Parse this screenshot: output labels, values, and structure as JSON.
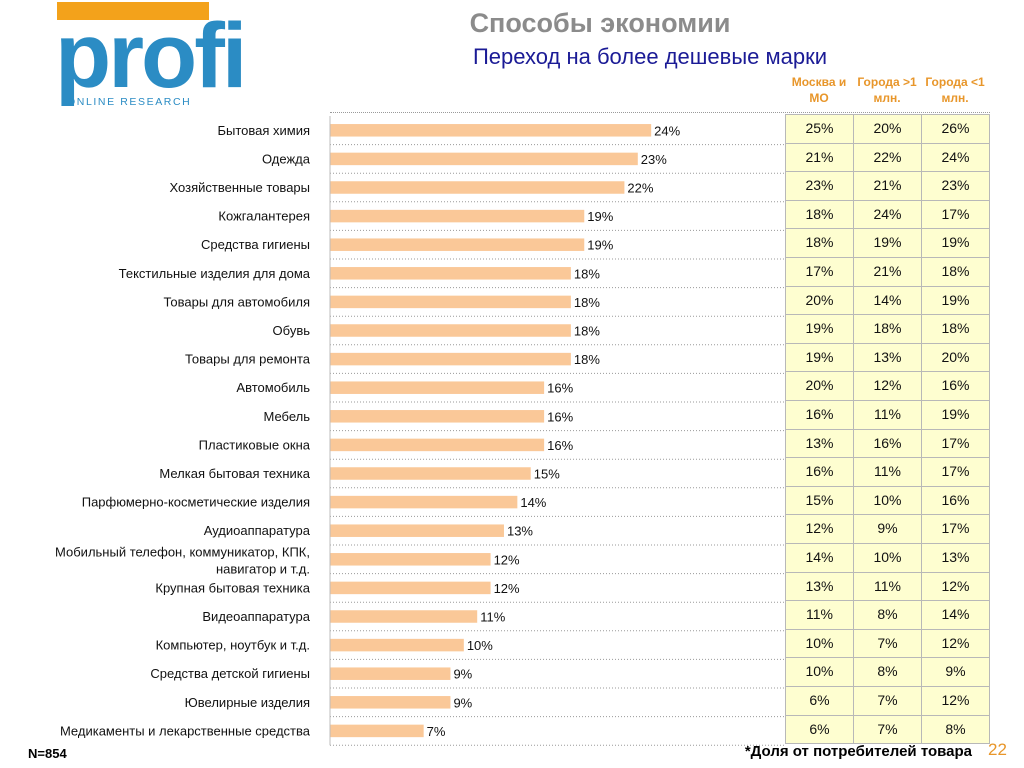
{
  "logo": {
    "word": "profi",
    "subtitle": "ONLINE RESEARCH",
    "blue": "#2b8cc4",
    "orange": "#f3a21b"
  },
  "titles": {
    "main": "Способы экономии",
    "sub": "Переход на более дешевые марки"
  },
  "table_headers": [
    "Москва и МО",
    "Города >1 млн.",
    "Города <1 млн."
  ],
  "colors": {
    "bar": "#fac898",
    "table_bg": "#fefed0",
    "title_gray": "#8b8b8b",
    "subtitle_blue": "#1b1b96",
    "accent_orange": "#e8962a"
  },
  "chart_data": {
    "type": "bar",
    "orientation": "horizontal",
    "categories": [
      "Бытовая химия",
      "Одежда",
      "Хозяйственные товары",
      "Кожгалантерея",
      "Средства гигиены",
      "Текстильные изделия для дома",
      "Товары для автомобиля",
      "Обувь",
      "Товары для ремонта",
      "Автомобиль",
      "Мебель",
      "Пластиковые окна",
      "Мелкая бытовая техника",
      "Парфюмерно-косметические изделия",
      "Аудиоаппаратура",
      "Мобильный телефон, коммуникатор, КПК, навигатор и т.д.",
      "Крупная бытовая техника",
      "Видеоаппаратура",
      "Компьютер, ноутбук и т.д.",
      "Средства детской гигиены",
      "Ювелирные изделия",
      "Медикаменты и лекарственные средства"
    ],
    "values": [
      24,
      23,
      22,
      19,
      19,
      18,
      18,
      18,
      18,
      16,
      16,
      16,
      15,
      14,
      13,
      12,
      12,
      11,
      10,
      9,
      9,
      7
    ],
    "value_labels": [
      "24%",
      "23%",
      "22%",
      "19%",
      "19%",
      "18%",
      "18%",
      "18%",
      "18%",
      "16%",
      "16%",
      "16%",
      "15%",
      "14%",
      "13%",
      "12%",
      "12%",
      "11%",
      "10%",
      "9%",
      "9%",
      "7%"
    ],
    "unit": "%",
    "xlim": [
      0,
      34
    ],
    "grid": false,
    "legend": "none"
  },
  "table_rows": [
    [
      "25%",
      "20%",
      "26%"
    ],
    [
      "21%",
      "22%",
      "24%"
    ],
    [
      "23%",
      "21%",
      "23%"
    ],
    [
      "18%",
      "24%",
      "17%"
    ],
    [
      "18%",
      "19%",
      "19%"
    ],
    [
      "17%",
      "21%",
      "18%"
    ],
    [
      "20%",
      "14%",
      "19%"
    ],
    [
      "19%",
      "18%",
      "18%"
    ],
    [
      "19%",
      "13%",
      "20%"
    ],
    [
      "20%",
      "12%",
      "16%"
    ],
    [
      "16%",
      "11%",
      "19%"
    ],
    [
      "13%",
      "16%",
      "17%"
    ],
    [
      "16%",
      "11%",
      "17%"
    ],
    [
      "15%",
      "10%",
      "16%"
    ],
    [
      "12%",
      "9%",
      "17%"
    ],
    [
      "14%",
      "10%",
      "13%"
    ],
    [
      "13%",
      "11%",
      "12%"
    ],
    [
      "11%",
      "8%",
      "14%"
    ],
    [
      "10%",
      "7%",
      "12%"
    ],
    [
      "10%",
      "8%",
      "9%"
    ],
    [
      "6%",
      "7%",
      "12%"
    ],
    [
      "6%",
      "7%",
      "8%"
    ]
  ],
  "footer": {
    "sample": "N=854",
    "footnote": "*Доля  от потребителей товара",
    "page": "22"
  }
}
